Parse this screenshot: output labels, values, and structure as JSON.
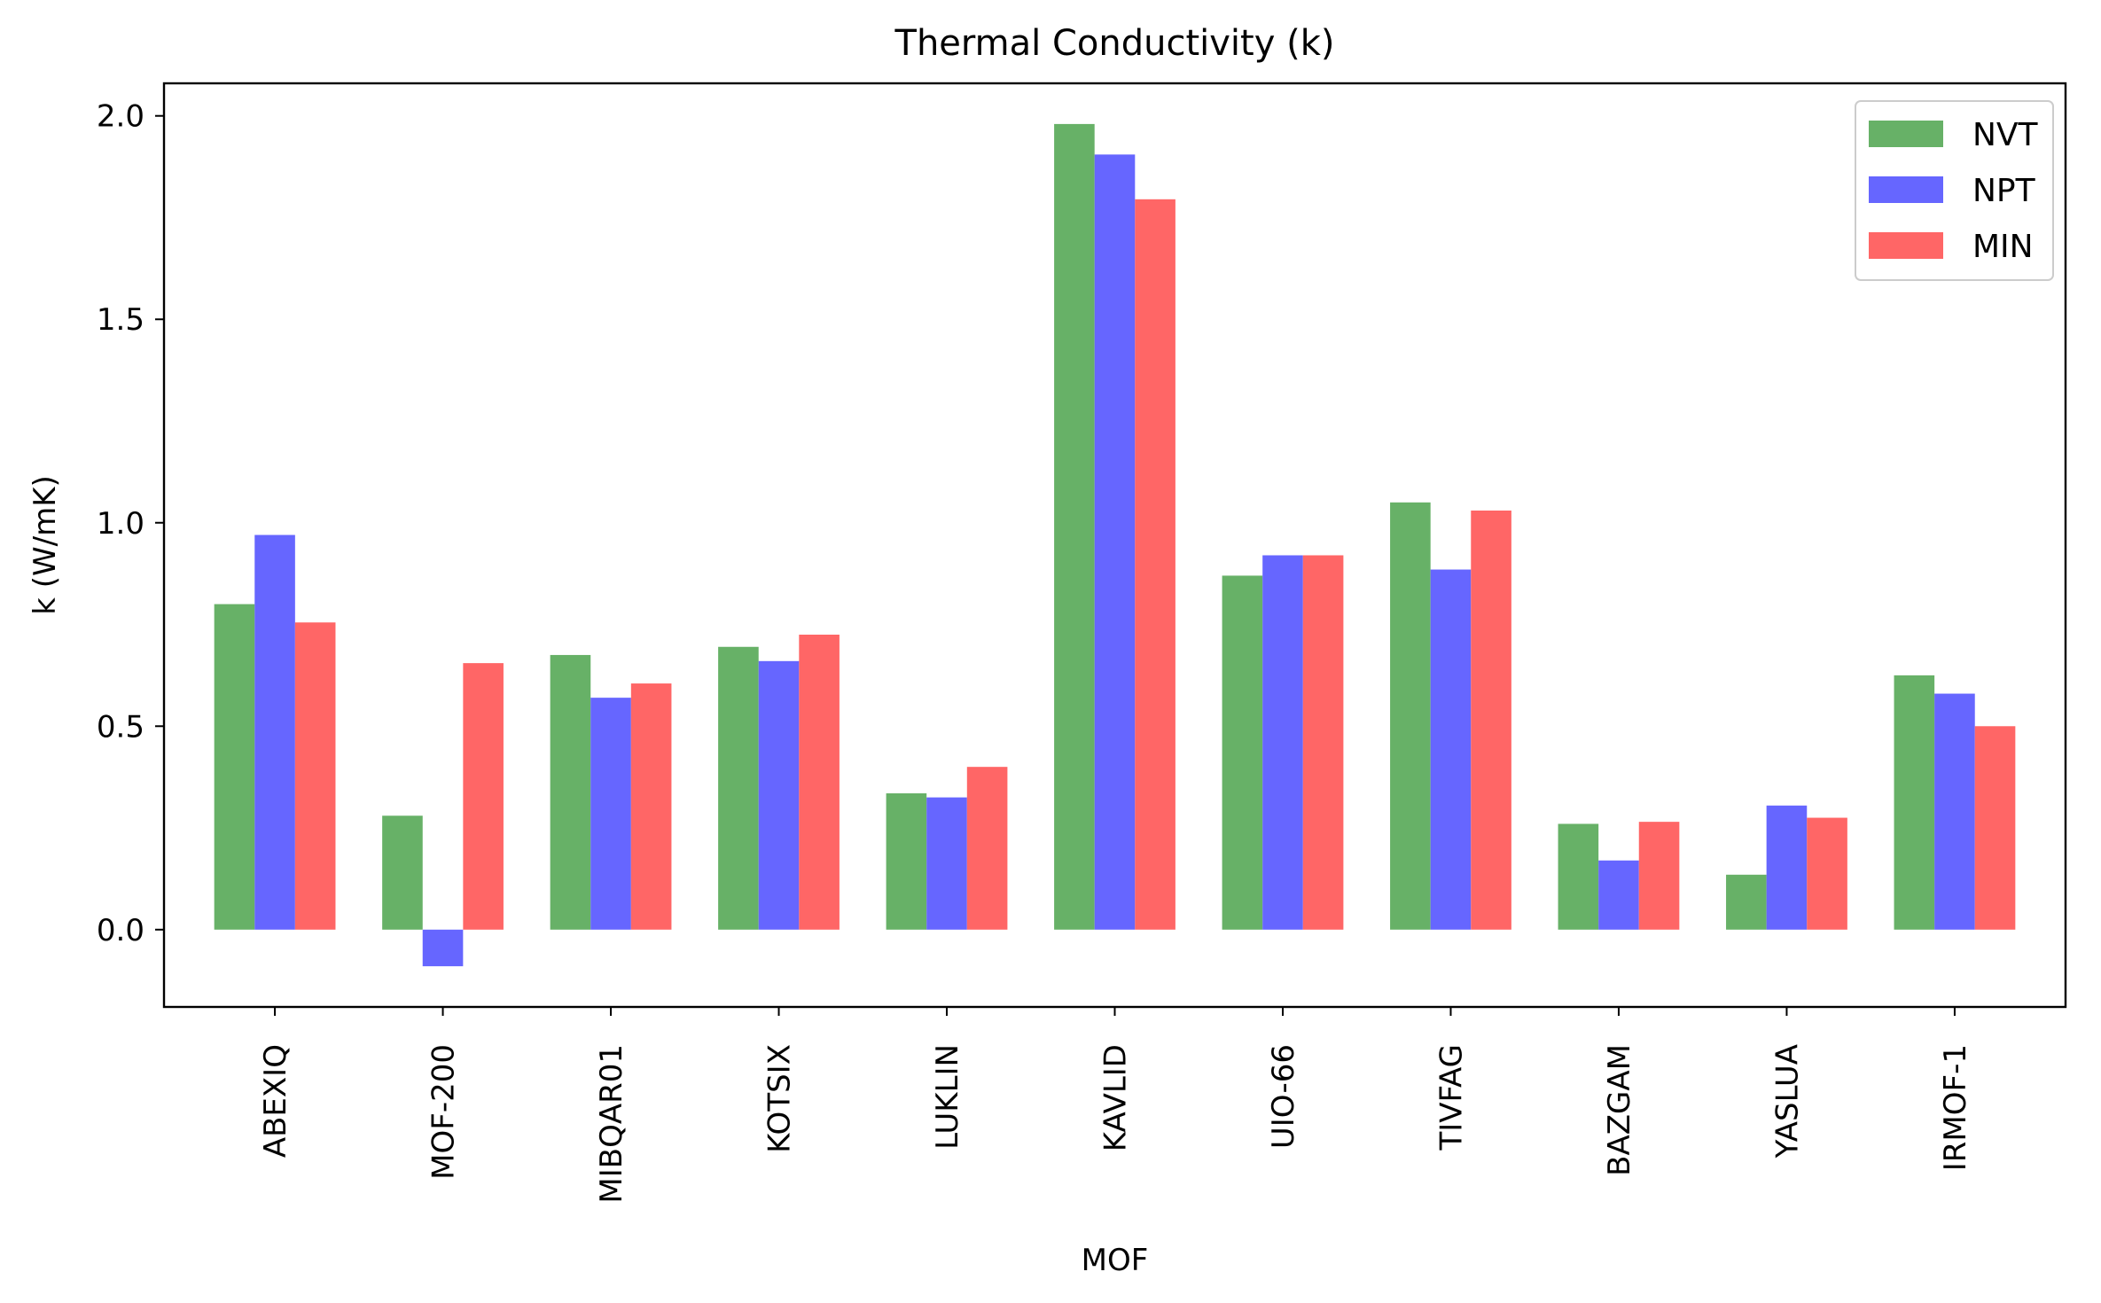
{
  "chart_data": {
    "type": "bar",
    "title": "Thermal Conductivity (k)",
    "xlabel": "MOF",
    "ylabel": "k (W/mK)",
    "categories": [
      "ABEXIQ",
      "MOF-200",
      "MIBQAR01",
      "KOTSIX",
      "LUKLIN",
      "KAVLID",
      "UIO-66",
      "TIVFAG",
      "BAZGAM",
      "YASLUA",
      "IRMOF-1"
    ],
    "series": [
      {
        "name": "NVT",
        "color": "#67b167",
        "values": [
          0.8,
          0.28,
          0.675,
          0.695,
          0.335,
          1.98,
          0.87,
          1.05,
          0.26,
          0.135,
          0.625
        ]
      },
      {
        "name": "NPT",
        "color": "#6666ff",
        "values": [
          0.97,
          -0.09,
          0.57,
          0.66,
          0.325,
          1.905,
          0.92,
          0.885,
          0.17,
          0.305,
          0.58
        ]
      },
      {
        "name": "MIN",
        "color": "#ff6666",
        "values": [
          0.755,
          0.655,
          0.605,
          0.725,
          0.4,
          1.795,
          0.92,
          1.03,
          0.265,
          0.275,
          0.5
        ]
      }
    ],
    "ylim": [
      -0.19,
      2.08
    ],
    "yticks": [
      "0.0",
      "0.5",
      "1.0",
      "1.5",
      "2.0"
    ],
    "legend": "top-right",
    "grid": false
  }
}
